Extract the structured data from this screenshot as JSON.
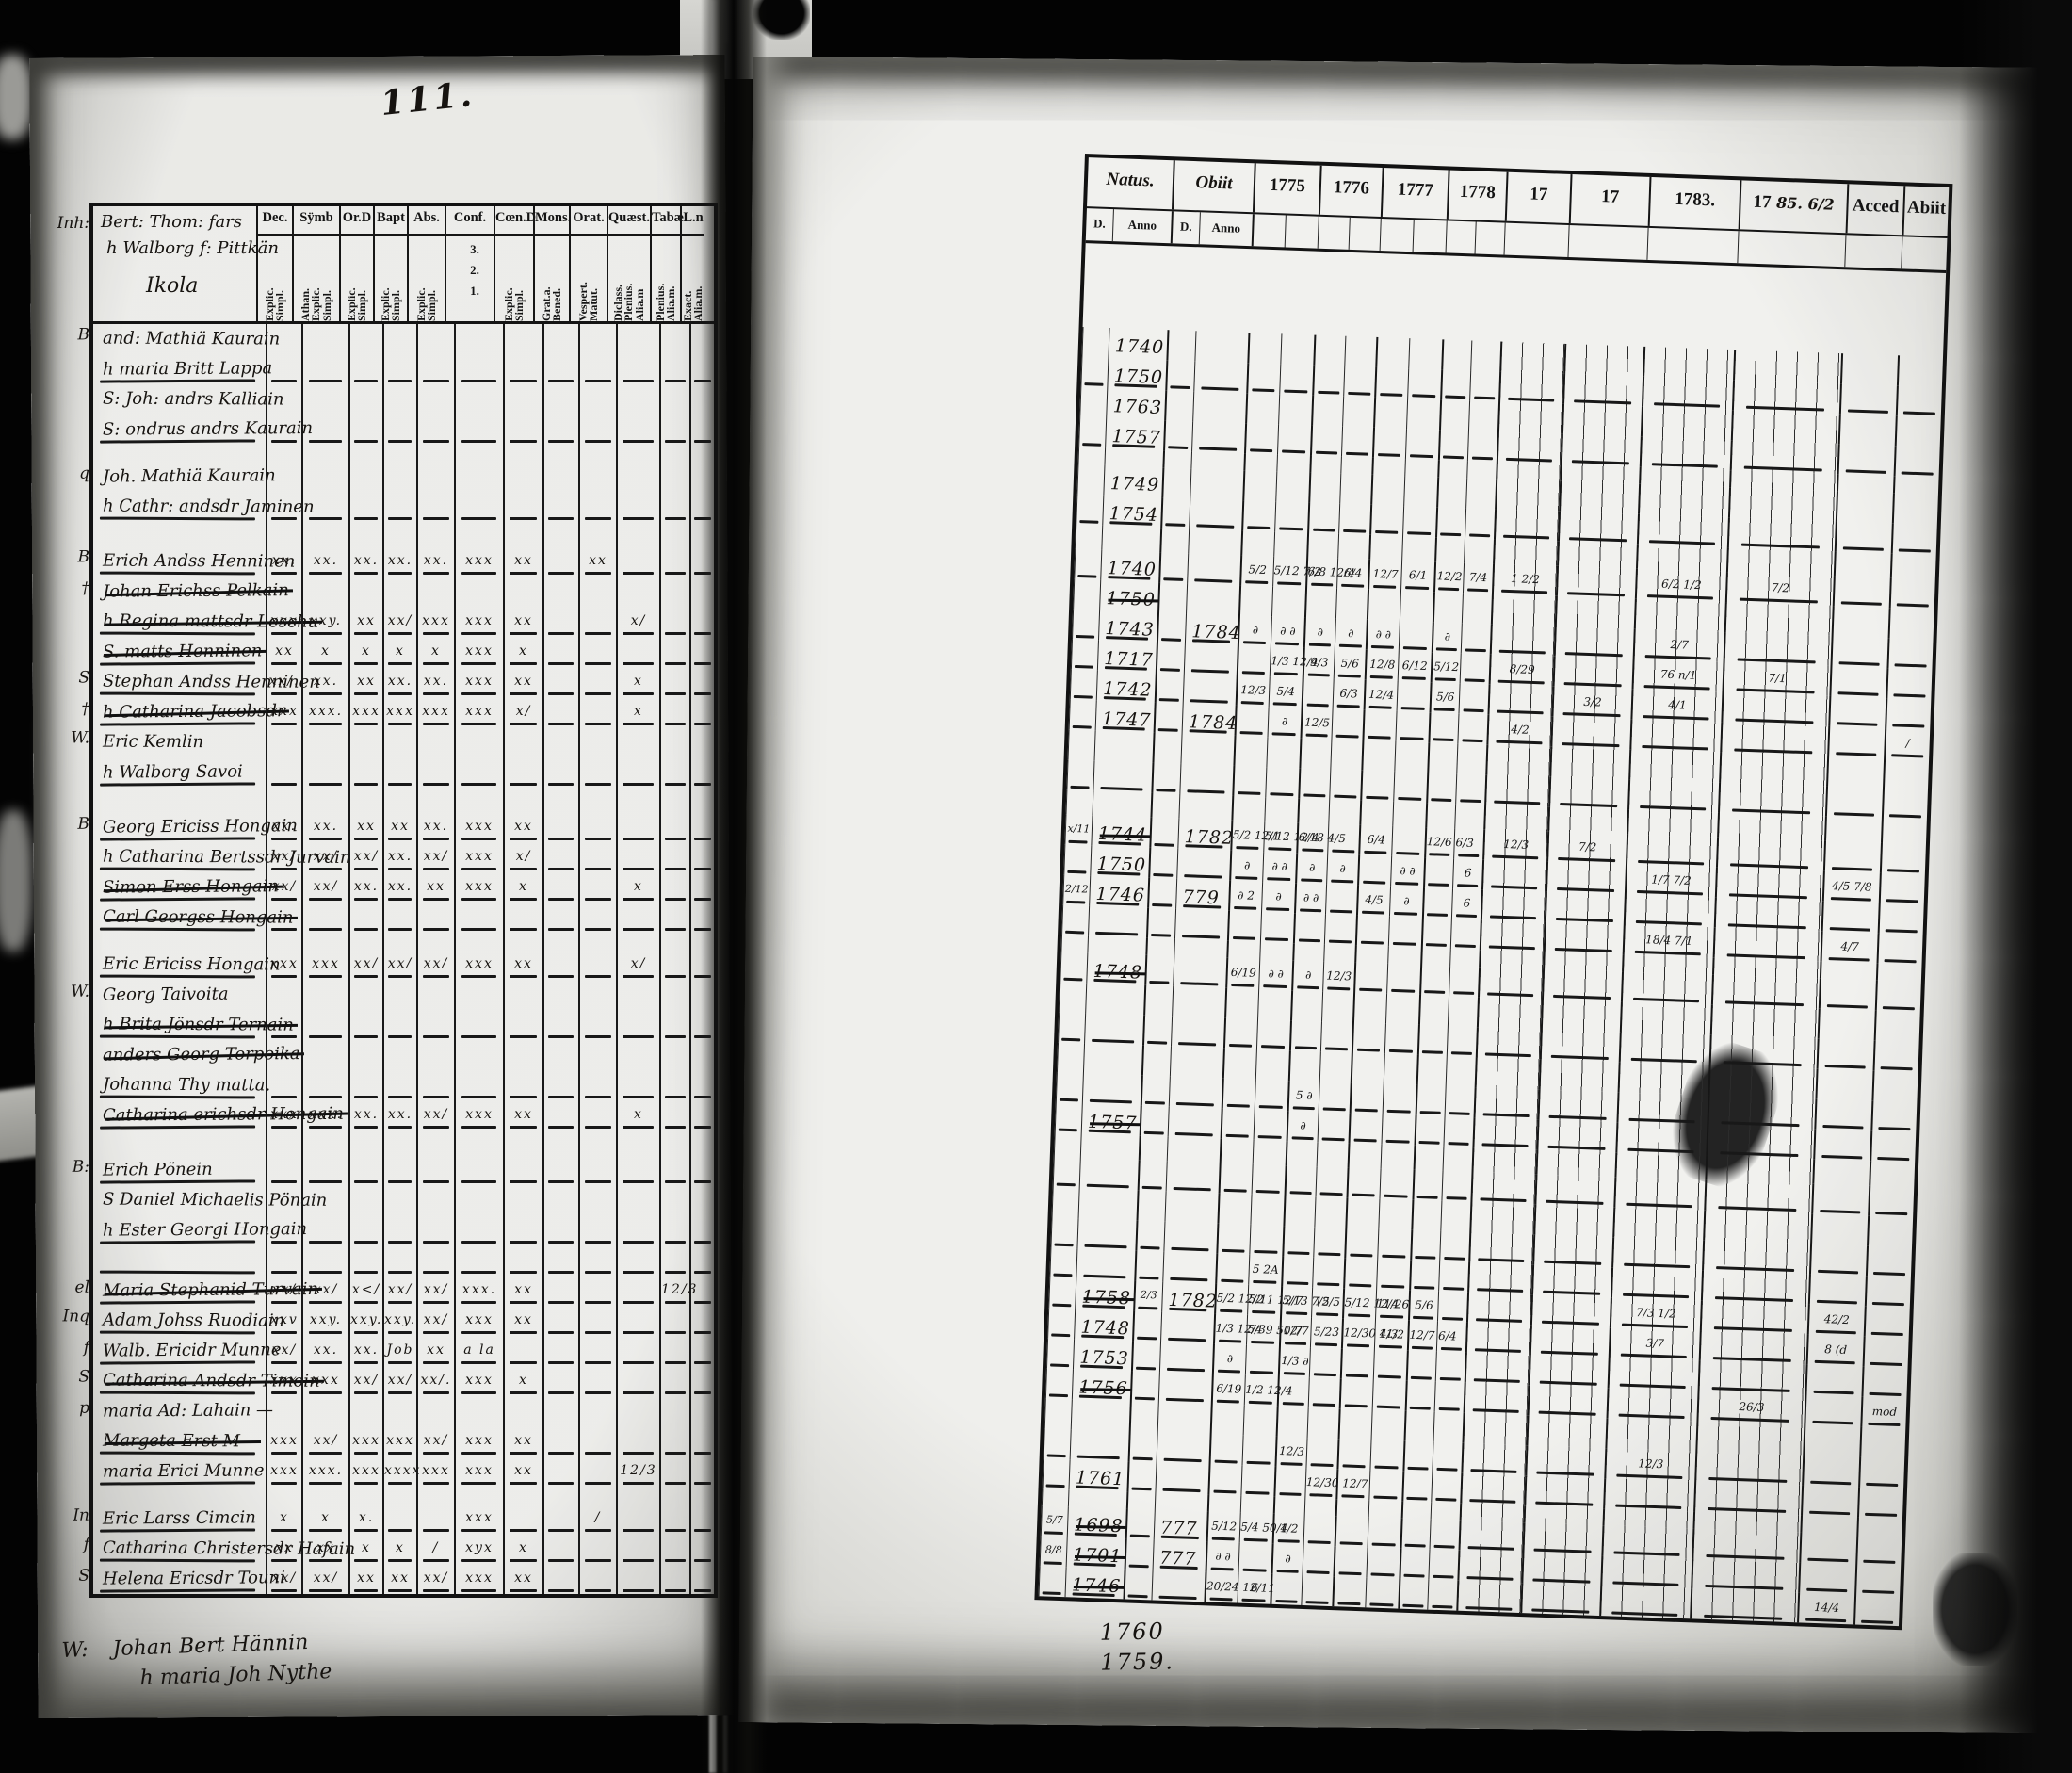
{
  "page_number": "111.",
  "left_table": {
    "margin_header": "Inh:",
    "household_header": [
      "Bert: Thom: fars",
      "h Walborg f: Pittkän",
      "Ikola"
    ],
    "columns": [
      {
        "label": "Dec.",
        "sub": [
          "Explic.",
          "Simpl."
        ]
      },
      {
        "label": "Sÿmb",
        "sub": [
          "Athan.",
          "Explic.",
          "Simpl."
        ]
      },
      {
        "label": "Or.D",
        "sub": [
          "Explic.",
          "Simpl."
        ]
      },
      {
        "label": "Bapt",
        "sub": [
          "Explic.",
          "Simpl."
        ]
      },
      {
        "label": "Abs.",
        "sub": [
          "Explic.",
          "Simpl."
        ]
      },
      {
        "label": "Conf.",
        "sub": [
          "3.",
          "2.",
          "1."
        ],
        "stacked": true
      },
      {
        "label": "Cœn.D",
        "sub": [
          "Explic.",
          "Simpl."
        ]
      },
      {
        "label": "Mons.",
        "sub": [
          "Grat.a.",
          "Bened."
        ]
      },
      {
        "label": "Orat.",
        "sub": [
          "Vespert.",
          "Matut."
        ]
      },
      {
        "label": "Quæst.",
        "sub": [
          "Diclass.",
          "Plenius.",
          "Alia.m"
        ]
      },
      {
        "label": "Tabæ",
        "sub": [
          "Plenius.",
          "Alia.m."
        ]
      },
      {
        "label": "L.n",
        "sub": [
          "Exact.",
          "Alia.m."
        ]
      }
    ]
  },
  "right_table": {
    "natus_label": "Natus.",
    "obiit_label": "Obiit",
    "d_label": "D.",
    "anno_label": "Anno",
    "years": [
      {
        "label": "1775"
      },
      {
        "label": "1776"
      },
      {
        "label": "1777"
      },
      {
        "label": "1778"
      },
      {
        "label": "17"
      },
      {
        "label": "17"
      },
      {
        "label": "1783."
      },
      {
        "label": "17",
        "hand": "85. 6/2"
      },
      {
        "label": "Acced"
      },
      {
        "label": "Abiit"
      }
    ]
  },
  "rows": [
    {
      "m": "B",
      "t": "and: Mathiä Kaurain",
      "natus": "1740"
    },
    {
      "t": "h maria Britt Lappa",
      "dash": true,
      "natus": "1750"
    },
    {
      "t": "S: Joh: andrs Kalliain",
      "natus": "1763"
    },
    {
      "t": "S: ondrus andrs Kaurain",
      "dash": true,
      "natus": "1757"
    },
    {
      "type": "gap",
      "size": "g18"
    },
    {
      "m": "q",
      "t": "Joh. Mathiä Kaurain",
      "natus": "1749"
    },
    {
      "t": "h Cathr: andsdr Jaminen",
      "dash": true,
      "natus": "1754"
    },
    {
      "type": "gap",
      "size": "g26"
    },
    {
      "m": "B",
      "t": "Erich Andss Henninen",
      "dash": true,
      "natus": "1740",
      "marks": [
        "xx.",
        "xx.",
        "xx.",
        "xx.",
        "xx.",
        "xxx",
        "xx",
        "",
        "xx",
        "",
        "",
        ""
      ],
      "ym": [
        "5/2",
        "5/12 7/2",
        "6/8 12/4",
        "6/4",
        "12/7",
        "6/1",
        "12/2",
        "7/4",
        "1 2/2",
        "",
        "6/2 1/2",
        "7/2",
        "",
        ""
      ]
    },
    {
      "m": "†",
      "t": "Johan Erichss Pelkain",
      "struck": true,
      "natus": "1750",
      "natus_struck": true
    },
    {
      "t": "h Regina mattsdr Leschu",
      "struck": true,
      "dash": true,
      "natus": "1743",
      "obiit": "1784",
      "marks": [
        "xxx",
        "xxy.",
        "xx",
        "xx/",
        "xxx",
        "xxx",
        "xx",
        "",
        "",
        "x/",
        "",
        ""
      ],
      "ym": [
        "∂",
        "∂ ∂",
        "∂",
        "∂",
        "∂ ∂",
        "",
        "∂",
        "",
        "",
        "",
        "2/7",
        "",
        "",
        ""
      ]
    },
    {
      "t": "S. matts Henninen",
      "struck": true,
      "dash": true,
      "natus": "1717",
      "marks": [
        "xx",
        "x",
        "x",
        "x",
        "x",
        "xxx",
        "x",
        "",
        "",
        "",
        "",
        ""
      ],
      "ym": [
        "",
        "1/3 12/4",
        "9/3",
        "5/6",
        "12/8",
        "6/12",
        "5/12",
        "",
        "8/29",
        "",
        "76 n/1",
        "7/1",
        "",
        ""
      ]
    },
    {
      "m": "S",
      "t": "Stephan Andss Henninen",
      "dash": true,
      "natus": "1742",
      "marks": [
        "xx/.",
        "xx.",
        "xx",
        "xx.",
        "xx.",
        "xxx",
        "xx",
        "",
        "",
        "x",
        "",
        ""
      ],
      "ym": [
        "12/3",
        "5/4",
        "",
        "6/3",
        "12/4",
        "",
        "5/6",
        "",
        "",
        "3/2",
        "4/1",
        "",
        "",
        ""
      ]
    },
    {
      "m": "†",
      "t": "h Catharina Jacobsdr",
      "struck": true,
      "dash": true,
      "natus": "1747",
      "obiit": "1784",
      "marks": [
        "xxx",
        "xxx.",
        "xxx",
        "xxx",
        "xxx",
        "xxx",
        "x/",
        "",
        "",
        "x",
        "",
        ""
      ],
      "ym": [
        "",
        "∂",
        "12/5",
        "",
        "",
        "",
        "",
        "",
        "4/2",
        "",
        "",
        "",
        "",
        "/"
      ]
    },
    {
      "m": "W.",
      "t": "Eric Kemlin"
    },
    {
      "t": "h Walborg Savoi",
      "dash": true
    },
    {
      "type": "gap",
      "size": "g26"
    },
    {
      "m": "B",
      "t": "Georg Ericiss Hongain",
      "dash": true,
      "natus": "1744",
      "natus_struck": true,
      "natus_day": "x/11",
      "obiit": "1782",
      "marks": [
        "xx.",
        "xx.",
        "xx",
        "xx",
        "xx.",
        "xxx",
        "xx",
        "",
        "",
        "",
        "",
        ""
      ],
      "ym": [
        "5/2 12/1",
        "5/12 12/4",
        "6/18 4/5",
        "",
        "6/4",
        "",
        "12/6 6/3",
        "",
        "12/3",
        "7/2",
        "",
        "",
        "",
        ""
      ]
    },
    {
      "t": "h Catharina Bertssdr Jurvain",
      "dash": true,
      "natus": "1750",
      "marks": [
        "xx/",
        "xx/",
        "xx/",
        "xx.",
        "xx/",
        "xxx",
        "x/",
        "",
        "",
        "",
        "",
        ""
      ],
      "ym": [
        "∂",
        "∂ ∂",
        "∂",
        "∂",
        "",
        "∂ ∂",
        "",
        "6",
        "",
        "",
        "1/7 7/2",
        "",
        "4/5 7/8",
        ""
      ]
    },
    {
      "t": "Simon Erss Hongain",
      "struck": true,
      "dash": true,
      "natus": "1746",
      "natus_day": "2/12",
      "obiit": "779",
      "marks": [
        "xx/",
        "xx/",
        "xx.",
        "xx.",
        "xx",
        "xxx",
        "x",
        "",
        "",
        "x",
        "",
        ""
      ],
      "ym": [
        "∂ 2",
        "∂",
        "∂ ∂",
        "",
        "4/5",
        "∂",
        "",
        "6",
        "",
        "",
        "",
        "",
        "",
        ""
      ]
    },
    {
      "t": "Carl Georgss Hongain",
      "struck": true,
      "dash": true,
      "ym": [
        "",
        "",
        "",
        "",
        "",
        "",
        "",
        "",
        "",
        "",
        "18/4 7/1",
        "",
        "4/7",
        ""
      ]
    },
    {
      "type": "gap",
      "size": "g18"
    },
    {
      "t": "Eric Ericiss Hongain",
      "dash": true,
      "natus": "1748",
      "natus_struck": true,
      "marks": [
        "xxx",
        "xxx",
        "xx/",
        "xx/",
        "xx/",
        "xxx",
        "xx",
        "",
        "",
        "x/",
        "",
        ""
      ],
      "ym": [
        "6/19",
        "∂ ∂",
        "∂",
        "12/3",
        "",
        "",
        "",
        "",
        "",
        "",
        "",
        "",
        "",
        ""
      ]
    },
    {
      "m": "W.",
      "t": "Georg Taivoita"
    },
    {
      "t": "h Brita Jönsdr Ternain",
      "struck": true,
      "dash": true
    },
    {
      "t": "anders Georg Torpoika",
      "struck": true
    },
    {
      "t": "Johanna Thy matta.",
      "dash": true,
      "ym": [
        "",
        "",
        "5 ∂",
        "",
        "",
        "",
        "",
        "",
        "",
        "",
        "",
        "",
        "",
        ""
      ]
    },
    {
      "t": "Catharina erichsdr Hongain",
      "struck": true,
      "dash": true,
      "natus": "1757",
      "natus_struck": true,
      "marks": [
        "xxx",
        "xxx.",
        "xx.",
        "xx.",
        "xx/",
        "xxx",
        "xx",
        "",
        "",
        "x",
        "",
        ""
      ],
      "ym": [
        "",
        "",
        "∂",
        "",
        "",
        "",
        "",
        "",
        "",
        "",
        "",
        "",
        "",
        ""
      ]
    },
    {
      "type": "gap",
      "size": "g26"
    },
    {
      "m": "B:",
      "t": "Erich Pönein",
      "dash": true
    },
    {
      "t": "S Daniel Michaelis Pönain"
    },
    {
      "t": "h Ester Georgi Hongain",
      "dash": true
    },
    {
      "t": "",
      "dash": true,
      "ym": [
        "",
        "5 2A",
        "",
        "",
        "",
        "",
        "",
        "",
        "",
        "",
        "",
        "",
        "",
        ""
      ]
    },
    {
      "m": "el",
      "t": "Maria Stephanid Turvain",
      "struck": true,
      "dash": true,
      "natus": "1758",
      "natus_struck": true,
      "obiit": "1782",
      "obiit_day": "2/3",
      "marks": [
        "xx/",
        "xx/",
        "x</",
        "xx/",
        "xx/",
        "xxx.",
        "xx",
        "",
        "",
        "",
        "12/3",
        ""
      ],
      "ym": [
        "5/2 12/2",
        "5/11 12/7",
        "5/13 7/5",
        "12/5",
        "5/12 12/4",
        "11/26",
        "5/6",
        "",
        "",
        "",
        "7/3 1/2",
        "",
        "42/2",
        ""
      ]
    },
    {
      "m": "Inq",
      "t": "Adam Johss Ruodiain",
      "dash": true,
      "natus": "1748",
      "marks": [
        "xxv",
        "xxy.",
        "xxy.",
        "xxy.",
        "xx/",
        "xxx",
        "xx",
        "",
        "",
        "",
        "",
        ""
      ],
      "ym": [
        "1/3 12/4",
        "5/39 50/7",
        "12/7",
        "5/23",
        "12/30 4/3",
        "11/2",
        "12/7 6/4",
        "",
        "",
        "",
        "3/7",
        "",
        "8 (d",
        ""
      ]
    },
    {
      "m": "f",
      "t": "Walb. Ericidr Munne",
      "dash": true,
      "natus": "1753",
      "marks": [
        "xx/",
        "xx.",
        "xx.",
        "Job",
        "xx",
        "a la",
        "",
        "",
        "",
        "",
        "",
        ""
      ],
      "ym": [
        "∂",
        "",
        "1/3 ∂",
        "",
        "",
        "",
        "",
        "",
        "",
        "",
        "",
        "",
        "",
        ""
      ]
    },
    {
      "m": "S",
      "t": "Catharina Andsdr Timoin",
      "struck": true,
      "dash": true,
      "natus": "1756",
      "natus_struck": true,
      "marks": [
        "xxx",
        "xxx",
        "xx/",
        "xx/",
        "xx/.",
        "xxx",
        "x",
        "",
        "",
        "",
        "",
        ""
      ],
      "ym": [
        "6/19",
        "1/2 12/4",
        "",
        "",
        "",
        "",
        "",
        "",
        "",
        "",
        "",
        "26/3",
        "",
        "mod"
      ]
    },
    {
      "m": "p",
      "t": "maria Ad: Lahain —"
    },
    {
      "t": "Margeta Erst M—",
      "struck": true,
      "dash": true,
      "marks": [
        "xxx",
        "xx/",
        "xxx",
        "xxx",
        "xx/",
        "xxx",
        "xx",
        "",
        "",
        "",
        "",
        ""
      ],
      "ym": [
        "",
        "",
        "12/3",
        "",
        "",
        "",
        "",
        "",
        "",
        "",
        "12/3",
        "",
        "",
        ""
      ]
    },
    {
      "t": "maria Erici Munne",
      "dash": true,
      "natus": "1761",
      "marks": [
        "xxx",
        "xxx.",
        "xxx",
        "xxxx",
        "xxx",
        "xxx",
        "xx",
        "",
        "",
        "12/3",
        "",
        ""
      ],
      "ym": [
        "",
        "",
        "",
        "12/30 12/7",
        "",
        "",
        "",
        "",
        "",
        "",
        "",
        "",
        "",
        ""
      ]
    },
    {
      "type": "gap",
      "size": "g18"
    },
    {
      "m": "In",
      "t": "Eric Larss Cimcin",
      "dash": true,
      "natus": "1698",
      "natus_struck": true,
      "natus_day": "5/7",
      "obiit": "777",
      "marks": [
        "x",
        "x",
        "x.",
        "",
        "",
        "xxx",
        "",
        "",
        "/",
        "",
        "",
        ""
      ],
      "ym": [
        "5/12",
        "5/4 50/4",
        "1/2",
        "",
        "",
        "",
        "",
        "",
        "",
        "",
        "",
        "",
        "",
        ""
      ]
    },
    {
      "m": "f",
      "t": "Catharina Christersdr Hafain",
      "dash": true,
      "natus": "1701",
      "natus_struck": true,
      "natus_day": "8/8",
      "obiit": "777",
      "marks": [
        "xx",
        "xx",
        "x",
        "x",
        "/",
        "xyx",
        "x",
        "",
        "",
        "",
        "",
        ""
      ],
      "ym": [
        "∂ ∂",
        "",
        "∂",
        "",
        "",
        "",
        "",
        "",
        "",
        "",
        "",
        "",
        "",
        ""
      ]
    },
    {
      "m": "S",
      "t": "Helena Ericsdr Touni",
      "dash": true,
      "natus": "1746",
      "natus_struck": true,
      "marks": [
        "xx/",
        "xx/",
        "xx",
        "xx",
        "xx/",
        "xxx",
        "xx",
        "",
        "",
        "",
        "",
        ""
      ],
      "ym": [
        "20/24 12/11",
        "6",
        "",
        "",
        "",
        "",
        "",
        "",
        "",
        "",
        "",
        "",
        "14/4",
        ""
      ]
    }
  ],
  "bottom_note_left": {
    "margin": "W:",
    "lines": [
      "Johan Bert Hännin",
      "h maria Joh Nythe"
    ]
  },
  "bottom_note_right": {
    "lines": [
      "1760",
      "1759."
    ]
  }
}
